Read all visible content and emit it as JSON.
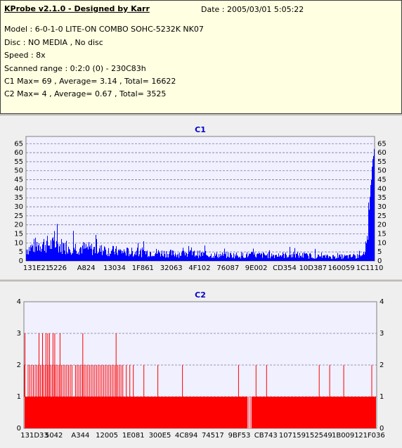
{
  "app": {
    "title": "KProbe v2.1.0 - Designed by Karr",
    "date": "Date : 2005/03/01 5:05:22"
  },
  "info": {
    "model": "Model : 6-0-1-0 LITE-ON COMBO SOHC-5232K NK07",
    "disc": "Disc : NO MEDIA , No disc",
    "speed": "Speed : 8x",
    "range": "Scanned range : 0:2:0 (0) - 230C83h",
    "c1": "C1 Max= 69 , Average= 3.14 , Total= 16622",
    "c2": "C2 Max= 4 , Average= 0.67 , Total= 3525"
  },
  "chart_data": [
    {
      "type": "bar",
      "title": "C1",
      "color": "#0000ff",
      "ylim": [
        0,
        69
      ],
      "yticks": [
        0,
        5,
        10,
        15,
        20,
        25,
        30,
        35,
        40,
        45,
        50,
        55,
        60,
        65
      ],
      "xticks": [
        "131E21",
        "5226",
        "A824",
        "13034",
        "1F861",
        "32063",
        "4F102",
        "76087",
        "9E002",
        "CD354",
        "10D387",
        "160059",
        "1C1110"
      ],
      "profile": [
        [
          0,
          8
        ],
        [
          0.04,
          12
        ],
        [
          0.08,
          11
        ],
        [
          0.12,
          10
        ],
        [
          0.16,
          9
        ],
        [
          0.2,
          8
        ],
        [
          0.24,
          7
        ],
        [
          0.3,
          6
        ],
        [
          0.36,
          6
        ],
        [
          0.42,
          5
        ],
        [
          0.48,
          5
        ],
        [
          0.54,
          4
        ],
        [
          0.6,
          4
        ],
        [
          0.66,
          4
        ],
        [
          0.72,
          4
        ],
        [
          0.78,
          4
        ],
        [
          0.84,
          3
        ],
        [
          0.9,
          3
        ],
        [
          0.95,
          3
        ],
        [
          0.975,
          10
        ],
        [
          0.985,
          35
        ],
        [
          0.993,
          55
        ],
        [
          1,
          69
        ]
      ]
    },
    {
      "type": "bar",
      "title": "C2",
      "color": "#ff0000",
      "ylim": [
        0,
        4
      ],
      "yticks": [
        0,
        1,
        2,
        3,
        4
      ],
      "xticks": [
        "131D33",
        "5042",
        "A344",
        "12005",
        "1E081",
        "300E5",
        "4C894",
        "74517",
        "9BF53",
        "CB743",
        "107159",
        "152549",
        "1B0091",
        "21F036"
      ],
      "base_level": 1,
      "gaps": [
        0.635,
        0.638,
        0.641,
        0.644
      ],
      "spikes2": [
        0.0,
        0.01,
        0.015,
        0.02,
        0.025,
        0.03,
        0.035,
        0.04,
        0.045,
        0.05,
        0.055,
        0.06,
        0.065,
        0.07,
        0.075,
        0.08,
        0.085,
        0.09,
        0.095,
        0.1,
        0.105,
        0.11,
        0.115,
        0.12,
        0.125,
        0.13,
        0.135,
        0.145,
        0.15,
        0.155,
        0.16,
        0.165,
        0.17,
        0.175,
        0.18,
        0.185,
        0.19,
        0.195,
        0.2,
        0.205,
        0.21,
        0.215,
        0.22,
        0.225,
        0.23,
        0.235,
        0.24,
        0.245,
        0.25,
        0.255,
        0.26,
        0.265,
        0.27,
        0.275,
        0.28,
        0.29,
        0.3,
        0.31,
        0.34,
        0.38,
        0.45,
        0.61,
        0.66,
        0.69,
        0.84,
        0.87,
        0.91,
        0.99
      ],
      "spikes3": [
        0.0,
        0.04,
        0.05,
        0.06,
        0.065,
        0.07,
        0.08,
        0.085,
        0.1,
        0.165,
        0.26
      ]
    }
  ]
}
